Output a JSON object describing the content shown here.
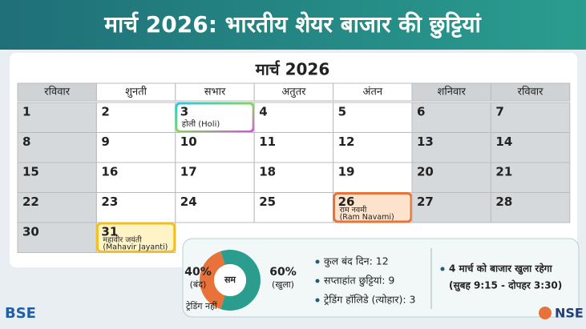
{
  "header": {
    "title": "मार्च 2026: भारतीय शेयर बाजार की छुट्टियां"
  },
  "calendar": {
    "title": "मार्च 2026",
    "weekdays": [
      "रविवार",
      "शुनती",
      "सभार",
      "अतुतर",
      "अंतन",
      "शनिवार",
      "रविवार"
    ],
    "rows": [
      [
        1,
        2,
        {
          "day": 3,
          "label": "होली (Holi)"
        },
        4,
        5,
        6,
        7
      ],
      [
        8,
        9,
        10,
        11,
        12,
        13,
        14
      ],
      [
        15,
        16,
        17,
        18,
        19,
        20,
        21
      ],
      [
        22,
        23,
        24,
        25,
        {
          "day": 26,
          "label": "राम नवमी",
          "label2": "(Ram Navami)"
        },
        27,
        28
      ],
      [
        30,
        {
          "day": 31,
          "label": "महावीर जयंती",
          "label2": "(Mahavir Jayanti)"
        }
      ]
    ]
  },
  "summary": {
    "donut": {
      "values": [
        40,
        60
      ],
      "value_labels": [
        "40%",
        "60%"
      ],
      "labels": [
        "(बंद)",
        "(खुला)"
      ],
      "center": "सम",
      "note": "ट्रेडिंग नहीं",
      "colors": [
        "#e8733a",
        "#2a9d8f"
      ]
    },
    "stats": [
      "कुल बंद दिन: 12",
      "सप्ताहांत छुट्टियां: 9",
      "ट्रेडिंग हॉलिडे (त्योहार): 3"
    ],
    "notice": [
      "4 मार्च को बाजार खुला रहेगा",
      "(सुबह 9:15 - दोपहर 3:30)"
    ]
  },
  "logos": {
    "left": "BSE",
    "right": "NSE"
  }
}
